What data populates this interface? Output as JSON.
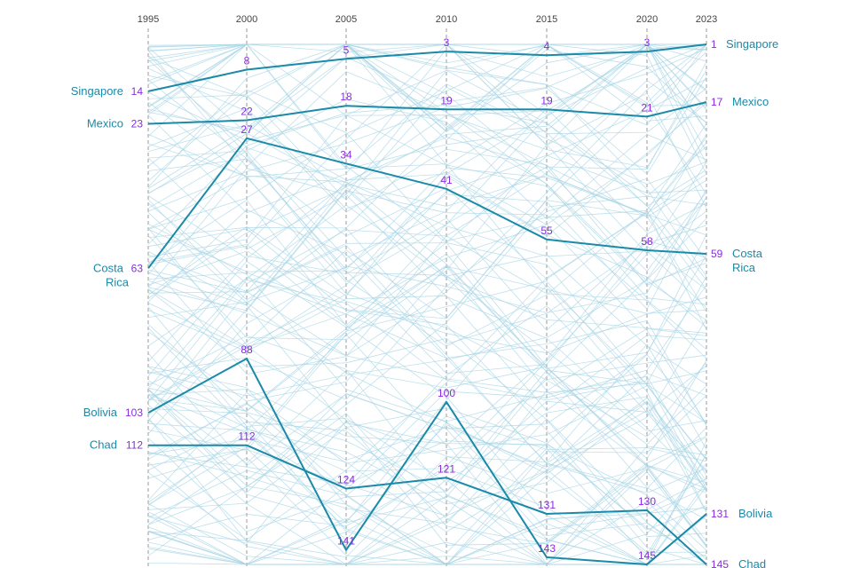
{
  "chart_data": {
    "type": "line",
    "subtype": "bump-chart",
    "x": [
      1995,
      2000,
      2005,
      2010,
      2015,
      2020,
      2023
    ],
    "x_tick_labels": [
      "1995",
      "2000",
      "2005",
      "2010",
      "2015",
      "2020",
      "2023"
    ],
    "y_direction": "rank (1 at top)",
    "ylim": [
      1,
      145
    ],
    "grid": "dashed vertical gridlines at each year",
    "series": [
      {
        "name": "Singapore",
        "ranks": [
          14,
          8,
          5,
          3,
          4,
          3,
          1
        ],
        "left_label": "Singapore",
        "right_label": "Singapore"
      },
      {
        "name": "Mexico",
        "ranks": [
          23,
          22,
          18,
          19,
          19,
          21,
          17
        ],
        "left_label": "Mexico",
        "right_label": "Mexico"
      },
      {
        "name": "Costa Rica",
        "ranks": [
          63,
          27,
          34,
          41,
          55,
          58,
          59
        ],
        "left_label": "Costa Rica",
        "right_label": "Costa Rica"
      },
      {
        "name": "Bolivia",
        "ranks": [
          103,
          88,
          141,
          100,
          143,
          145,
          131
        ],
        "left_label": "Bolivia",
        "right_label": "Bolivia"
      },
      {
        "name": "Chad",
        "ranks": [
          112,
          112,
          124,
          121,
          131,
          130,
          145
        ],
        "left_label": "Chad",
        "right_label": "Chad"
      }
    ],
    "background_series_note": "many faint light-blue lines for other countries",
    "colors": {
      "highlight_line": "#1a8aa8",
      "background_lines": "#a9d6e5",
      "rank_text": "#8a2be2",
      "country_text": "#1a8aa8",
      "gridline": "#9a9a9a"
    }
  }
}
